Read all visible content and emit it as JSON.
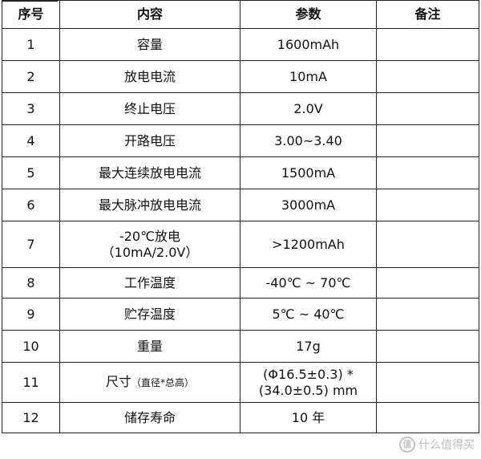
{
  "headers": [
    "序号",
    "内容",
    "参数",
    "备注"
  ],
  "rows": [
    {
      "no": "1",
      "item": "容量",
      "item_note": "",
      "item_line2": "",
      "value": "1600mAh",
      "remark": ""
    },
    {
      "no": "2",
      "item": "放电电流",
      "item_note": "",
      "item_line2": "",
      "value": "10mA",
      "remark": ""
    },
    {
      "no": "3",
      "item": "终止电压",
      "item_note": "",
      "item_line2": "",
      "value": "2.0V",
      "remark": ""
    },
    {
      "no": "4",
      "item": "开路电压",
      "item_note": "",
      "item_line2": "",
      "value": "3.00~3.40",
      "remark": ""
    },
    {
      "no": "5",
      "item": "最大连续放电电流",
      "item_note": "",
      "item_line2": "",
      "value": "1500mA",
      "remark": ""
    },
    {
      "no": "6",
      "item": "最大脉冲放电电流",
      "item_note": "",
      "item_line2": "",
      "value": "3000mA",
      "remark": ""
    },
    {
      "no": "7",
      "item": "-20℃放电",
      "item_note": "",
      "item_line2": "（10mA/2.0V）",
      "value": ">1200mAh",
      "remark": ""
    },
    {
      "no": "8",
      "item": "工作温度",
      "item_note": "",
      "item_line2": "",
      "value": "-40℃ ~ 70℃",
      "remark": ""
    },
    {
      "no": "9",
      "item": "贮存温度",
      "item_note": "",
      "item_line2": "",
      "value": "5℃ ~ 40℃",
      "remark": ""
    },
    {
      "no": "10",
      "item": "重量",
      "item_note": "",
      "item_line2": "",
      "value": "17g",
      "remark": ""
    },
    {
      "no": "11",
      "item": "尺寸",
      "item_note": "（直径*总高）",
      "item_line2": "",
      "value": "(Φ16.5±0.3) * (34.0±0.5) mm",
      "remark": ""
    },
    {
      "no": "12",
      "item": "储存寿命",
      "item_note": "",
      "item_line2": "",
      "value": "10 年",
      "remark": ""
    }
  ],
  "watermark": {
    "text": "什么值得买",
    "icon": "zhi-logo-icon"
  }
}
